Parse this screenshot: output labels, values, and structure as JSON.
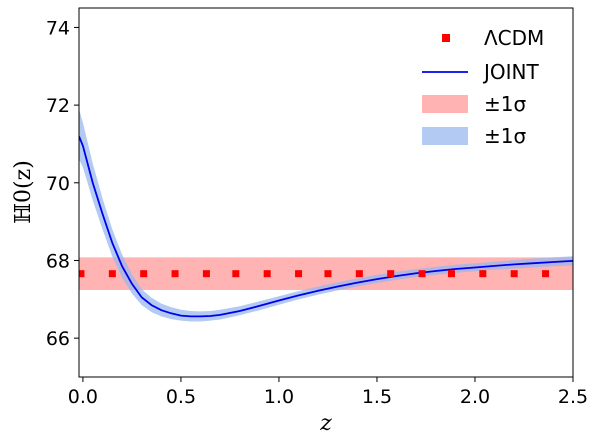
{
  "chart_data": {
    "type": "line",
    "xlabel": "z",
    "ylabel": "ℍ0(z)",
    "xlim": [
      -0.02,
      2.5
    ],
    "ylim": [
      65.0,
      74.5
    ],
    "x_ticks": [
      "0.0",
      "0.5",
      "1.0",
      "1.5",
      "2.0",
      "2.5"
    ],
    "y_ticks": [
      "66",
      "68",
      "70",
      "72",
      "74"
    ],
    "grid": false,
    "legend_position": "top-right",
    "series": [
      {
        "name": "ΛCDM",
        "kind": "markers",
        "color": "#ff0000",
        "x": [
          -0.01,
          0.15,
          0.31,
          0.47,
          0.63,
          0.78,
          0.94,
          1.1,
          1.25,
          1.41,
          1.57,
          1.73,
          1.88,
          2.04,
          2.2,
          2.36
        ],
        "y": [
          67.66,
          67.66,
          67.66,
          67.66,
          67.66,
          67.66,
          67.66,
          67.66,
          67.66,
          67.66,
          67.66,
          67.66,
          67.66,
          67.66,
          67.66,
          67.66
        ]
      },
      {
        "name": "JOINT",
        "kind": "line",
        "color": "#0000ee",
        "x": [
          -0.02,
          0.0,
          0.05,
          0.1,
          0.15,
          0.2,
          0.25,
          0.3,
          0.35,
          0.4,
          0.45,
          0.5,
          0.55,
          0.6,
          0.65,
          0.7,
          0.8,
          0.9,
          1.0,
          1.1,
          1.2,
          1.3,
          1.4,
          1.5,
          1.6,
          1.7,
          1.8,
          1.9,
          2.0,
          2.1,
          2.2,
          2.3,
          2.4,
          2.5
        ],
        "y": [
          71.2,
          70.95,
          70.0,
          69.2,
          68.45,
          67.85,
          67.4,
          67.05,
          66.85,
          66.72,
          66.64,
          66.58,
          66.56,
          66.56,
          66.57,
          66.6,
          66.7,
          66.83,
          66.97,
          67.1,
          67.22,
          67.33,
          67.43,
          67.52,
          67.6,
          67.67,
          67.73,
          67.78,
          67.82,
          67.86,
          67.9,
          67.93,
          67.96,
          67.99
        ]
      }
    ],
    "bands": [
      {
        "name": "±1σ",
        "color": "#ff9999",
        "x": [
          -0.02,
          2.5
        ],
        "lower": [
          67.24,
          67.24
        ],
        "upper": [
          68.08,
          68.08
        ]
      },
      {
        "name": "±1σ",
        "color": "#9ab8ee",
        "x": [
          -0.02,
          0.0,
          0.05,
          0.1,
          0.15,
          0.2,
          0.25,
          0.3,
          0.35,
          0.4,
          0.45,
          0.5,
          0.55,
          0.6,
          0.65,
          0.7,
          0.8,
          0.9,
          1.0,
          1.1,
          1.2,
          1.3,
          1.4,
          1.5,
          1.6,
          1.7,
          1.8,
          1.9,
          2.0,
          2.1,
          2.2,
          2.3,
          2.4,
          2.5
        ],
        "lower": [
          70.6,
          70.4,
          69.55,
          68.8,
          68.1,
          67.55,
          67.15,
          66.85,
          66.67,
          66.56,
          66.49,
          66.45,
          66.43,
          66.43,
          66.45,
          66.48,
          66.59,
          66.72,
          66.86,
          67.0,
          67.12,
          67.23,
          67.33,
          67.42,
          67.5,
          67.57,
          67.63,
          67.68,
          67.72,
          67.76,
          67.79,
          67.82,
          67.85,
          67.87
        ],
        "upper": [
          71.9,
          71.55,
          70.5,
          69.6,
          68.8,
          68.15,
          67.65,
          67.26,
          67.04,
          66.89,
          66.8,
          66.73,
          66.7,
          66.69,
          66.7,
          66.73,
          66.82,
          66.95,
          67.08,
          67.21,
          67.33,
          67.44,
          67.54,
          67.63,
          67.71,
          67.78,
          67.84,
          67.89,
          67.93,
          67.97,
          68.01,
          68.05,
          68.08,
          68.11
        ]
      }
    ]
  }
}
